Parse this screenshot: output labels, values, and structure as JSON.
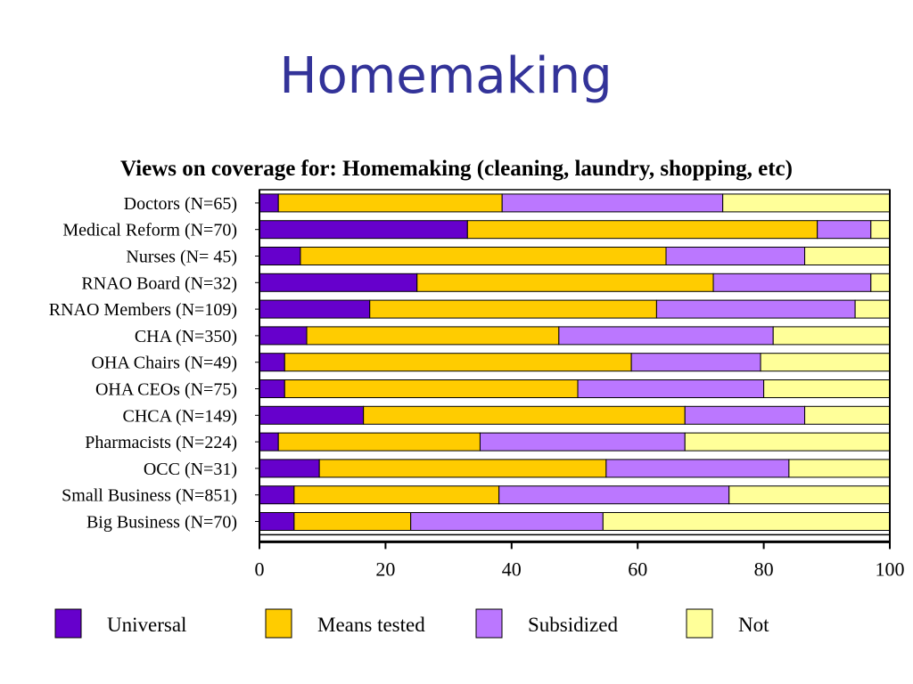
{
  "slide": {
    "title": "Homemaking"
  },
  "chart_data": {
    "type": "bar",
    "orientation": "horizontal",
    "stacked": true,
    "title": "Views on coverage for: Homemaking (cleaning, laundry, shopping, etc)",
    "categories": [
      "Doctors (N=65)",
      "Medical Reform (N=70)",
      "Nurses (N= 45)",
      "RNAO Board (N=32)",
      "RNAO Members (N=109)",
      "CHA (N=350)",
      "OHA Chairs (N=49)",
      "OHA CEOs (N=75)",
      "CHCA (N=149)",
      "Pharmacists (N=224)",
      "OCC (N=31)",
      "Small Business (N=851)",
      "Big Business (N=70)"
    ],
    "series": [
      {
        "name": "Universal",
        "color": "#6600cc",
        "values": [
          3,
          33,
          6.5,
          25,
          17.5,
          7.5,
          4,
          4,
          16.5,
          3,
          9.5,
          5.5,
          5.5
        ]
      },
      {
        "name": "Means tested",
        "color": "#ffcc00",
        "values": [
          35.5,
          55.5,
          58,
          47,
          45.5,
          40,
          55,
          46.5,
          51,
          32,
          45.5,
          32.5,
          18.5
        ]
      },
      {
        "name": "Subsidized",
        "color": "#bb77ff",
        "values": [
          35,
          8.5,
          22,
          25,
          31.5,
          34,
          20.5,
          29.5,
          19,
          32.5,
          29,
          36.5,
          30.5
        ]
      },
      {
        "name": "Not",
        "color": "#ffff99",
        "values": [
          26.5,
          3,
          13.5,
          3,
          5.5,
          18.5,
          20.5,
          20,
          13.5,
          32.5,
          16,
          25.5,
          45.5
        ]
      }
    ],
    "xlim": [
      0,
      100
    ],
    "xticks": [
      "0",
      "20",
      "40",
      "60",
      "80",
      "100"
    ],
    "grid": false,
    "legend_position": "bottom"
  }
}
